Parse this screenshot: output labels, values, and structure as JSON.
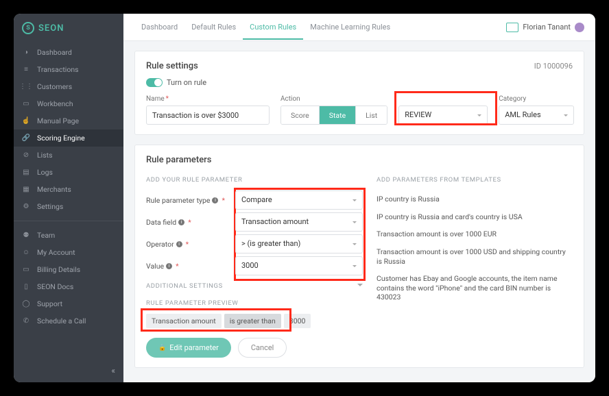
{
  "brand": "SEON",
  "sidebar": {
    "main": [
      {
        "icon": "◑",
        "label": "Dashboard"
      },
      {
        "icon": "≡",
        "label": "Transactions"
      },
      {
        "icon": "⋮⋮",
        "label": "Customers"
      },
      {
        "icon": "▭",
        "label": "Workbench"
      },
      {
        "icon": "☝",
        "label": "Manual Page"
      },
      {
        "icon": "🔗",
        "label": "Scoring Engine",
        "active": true
      },
      {
        "icon": "⊘",
        "label": "Lists"
      },
      {
        "icon": "▤",
        "label": "Logs"
      },
      {
        "icon": "▦",
        "label": "Merchants"
      },
      {
        "icon": "⚙",
        "label": "Settings"
      }
    ],
    "secondary": [
      {
        "icon": "⚉",
        "label": "Team"
      },
      {
        "icon": "☺",
        "label": "My Account"
      },
      {
        "icon": "▭",
        "label": "Billing Details"
      },
      {
        "icon": "▯",
        "label": "SEON Docs"
      },
      {
        "icon": "◯",
        "label": "Support"
      },
      {
        "icon": "✆",
        "label": "Schedule a Call"
      }
    ]
  },
  "tabs": [
    "Dashboard",
    "Default Rules",
    "Custom Rules",
    "Machine Learning Rules"
  ],
  "tabs_active": 2,
  "user": {
    "name": "Florian Tanant"
  },
  "settings": {
    "title": "Rule settings",
    "id": "ID 1000096",
    "toggle_label": "Turn on rule",
    "name_label": "Name",
    "name_value": "Transaction is over $3000",
    "action_label": "Action",
    "actions": [
      "Score",
      "State",
      "List"
    ],
    "action_active": 1,
    "review_value": "REVIEW",
    "category_label": "Category",
    "category_value": "AML Rules"
  },
  "params": {
    "title": "Rule parameters",
    "add_head": "Add your rule parameter",
    "templates_head": "Add parameters from templates",
    "rows": [
      {
        "label": "Rule parameter type",
        "value": "Compare"
      },
      {
        "label": "Data field",
        "value": "Transaction amount"
      },
      {
        "label": "Operator",
        "value": "> (is greater than)"
      },
      {
        "label": "Value",
        "value": "3000"
      }
    ],
    "templates": [
      "IP country is Russia",
      "IP country is Russia and card's country is USA",
      "Transaction amount is over 1000 EUR",
      "Transaction amount is over 1000 USD and shipping country is Russia",
      "Customer has Ebay and Google accounts, the item name contains the word \"iPhone\" and the card BIN number is 430023"
    ],
    "additional": "Additional settings",
    "preview_head": "Rule parameter preview",
    "preview": [
      "Transaction amount",
      "is greater than",
      "3000"
    ],
    "edit_btn": "Edit parameter",
    "cancel_btn": "Cancel"
  },
  "colors": {
    "accent": "#4dbba6",
    "highlight": "#ff2a1a",
    "sidebar_bg": "#3a3f47"
  }
}
